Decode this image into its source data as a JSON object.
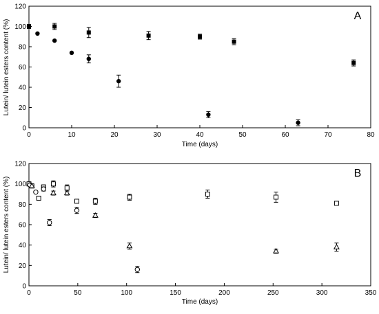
{
  "chart_data": [
    {
      "type": "scatter",
      "panel_label": "A",
      "xlabel": "Time (days)",
      "ylabel": "Lutein/ lutein esters content (%)",
      "xlim": [
        0,
        80
      ],
      "ylim": [
        0,
        120
      ],
      "xticks": [
        "0",
        "10",
        "20",
        "30",
        "40",
        "50",
        "60",
        "70",
        "80"
      ],
      "yticks": [
        "0",
        "20",
        "40",
        "60",
        "80",
        "100",
        "120"
      ],
      "grid": false,
      "legend": "none",
      "series": [
        {
          "marker": "filled-square",
          "points": [
            {
              "x": 0,
              "y": 100,
              "err": 2
            },
            {
              "x": 6,
              "y": 100,
              "err": 3
            },
            {
              "x": 14,
              "y": 94,
              "err": 5
            },
            {
              "x": 28,
              "y": 91,
              "err": 4
            },
            {
              "x": 40,
              "y": 90,
              "err": 2.5
            },
            {
              "x": 48,
              "y": 85,
              "err": 3
            },
            {
              "x": 76,
              "y": 64,
              "err": 3
            }
          ]
        },
        {
          "marker": "filled-circle",
          "points": [
            {
              "x": 0,
              "y": 100,
              "err": 0
            },
            {
              "x": 2,
              "y": 93,
              "err": 0
            },
            {
              "x": 6,
              "y": 86,
              "err": 0
            },
            {
              "x": 10,
              "y": 74,
              "err": 0
            },
            {
              "x": 14,
              "y": 68,
              "err": 4
            },
            {
              "x": 21,
              "y": 46,
              "err": 6
            },
            {
              "x": 42,
              "y": 13,
              "err": 3
            },
            {
              "x": 63,
              "y": 5,
              "err": 3
            }
          ]
        }
      ]
    },
    {
      "type": "scatter",
      "panel_label": "B",
      "xlabel": "Time (days)",
      "ylabel": "Lutein/ lutein esters content (%)",
      "xlim": [
        0,
        350
      ],
      "ylim": [
        0,
        120
      ],
      "xticks": [
        "0",
        "50",
        "100",
        "150",
        "200",
        "250",
        "300",
        "350"
      ],
      "yticks": [
        "0",
        "20",
        "40",
        "60",
        "80",
        "100",
        "120"
      ],
      "grid": false,
      "legend": "none",
      "series": [
        {
          "marker": "open-square",
          "points": [
            {
              "x": 0,
              "y": 100,
              "err": 2
            },
            {
              "x": 3,
              "y": 98,
              "err": 2
            },
            {
              "x": 10,
              "y": 86,
              "err": 0
            },
            {
              "x": 15,
              "y": 97,
              "err": 2
            },
            {
              "x": 25,
              "y": 100,
              "err": 3
            },
            {
              "x": 39,
              "y": 96,
              "err": 3
            },
            {
              "x": 49,
              "y": 83,
              "err": 0
            },
            {
              "x": 68,
              "y": 83,
              "err": 3
            },
            {
              "x": 103,
              "y": 87,
              "err": 3
            },
            {
              "x": 183,
              "y": 90,
              "err": 4
            },
            {
              "x": 253,
              "y": 87,
              "err": 5
            },
            {
              "x": 315,
              "y": 81,
              "err": 0
            }
          ]
        },
        {
          "marker": "open-circle",
          "points": [
            {
              "x": 1,
              "y": 99,
              "err": 0
            },
            {
              "x": 7,
              "y": 92,
              "err": 0
            },
            {
              "x": 15,
              "y": 95,
              "err": 2
            },
            {
              "x": 21,
              "y": 62,
              "err": 3
            },
            {
              "x": 49,
              "y": 74,
              "err": 3
            },
            {
              "x": 111,
              "y": 16,
              "err": 3
            }
          ]
        },
        {
          "marker": "open-triangle",
          "points": [
            {
              "x": 3,
              "y": 98,
              "err": 2
            },
            {
              "x": 25,
              "y": 91,
              "err": 2
            },
            {
              "x": 39,
              "y": 91,
              "err": 2
            },
            {
              "x": 68,
              "y": 69,
              "err": 2
            },
            {
              "x": 103,
              "y": 39,
              "err": 3
            },
            {
              "x": 253,
              "y": 34,
              "err": 2
            },
            {
              "x": 315,
              "y": 38,
              "err": 4
            }
          ]
        }
      ]
    }
  ]
}
